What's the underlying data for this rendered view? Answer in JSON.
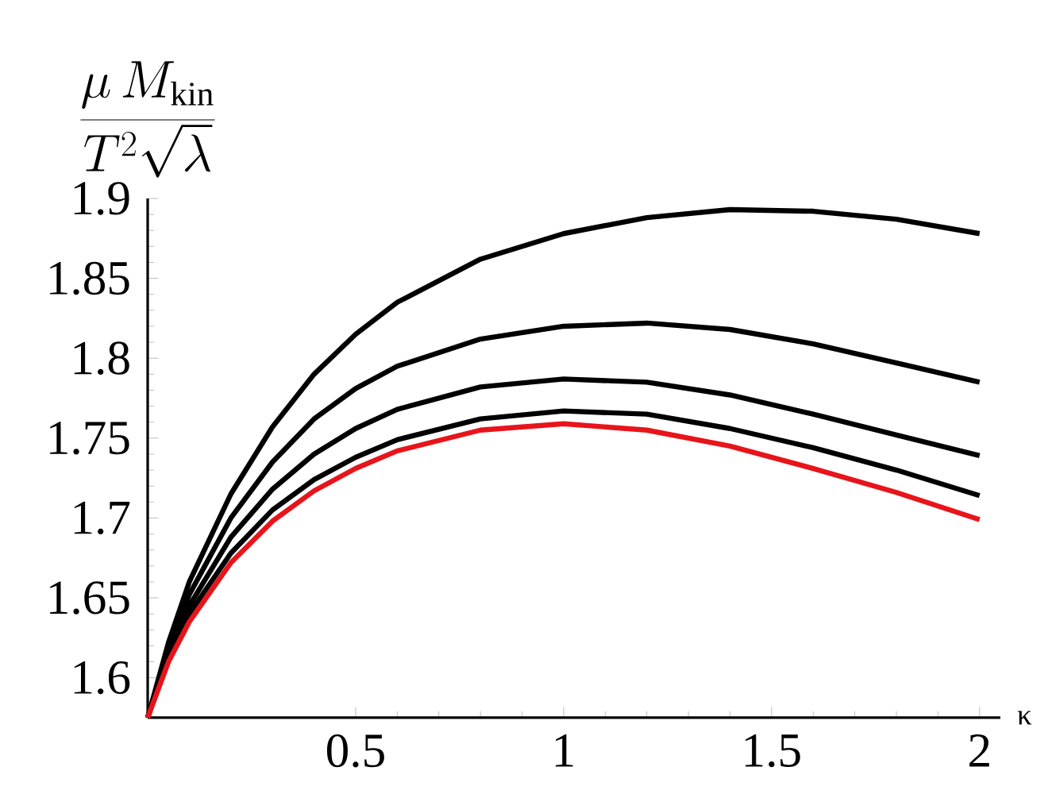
{
  "chart_data": {
    "type": "line",
    "xlabel": "κ",
    "ylabel": "\\frac{\\mu\\, M_{\\mathrm{kin}}}{T^2 \\sqrt{\\lambda}}",
    "x": [
      0,
      0.05,
      0.1,
      0.2,
      0.3,
      0.4,
      0.5,
      0.6,
      0.8,
      1.0,
      1.2,
      1.4,
      1.6,
      1.8,
      2.0
    ],
    "series": [
      {
        "color": "#000000",
        "values": [
          1.575,
          1.622,
          1.66,
          1.715,
          1.757,
          1.79,
          1.815,
          1.835,
          1.862,
          1.878,
          1.888,
          1.893,
          1.892,
          1.887,
          1.878
        ]
      },
      {
        "color": "#000000",
        "values": [
          1.575,
          1.618,
          1.652,
          1.7,
          1.735,
          1.762,
          1.781,
          1.795,
          1.812,
          1.82,
          1.822,
          1.818,
          1.809,
          1.797,
          1.785
        ]
      },
      {
        "color": "#000000",
        "values": [
          1.575,
          1.615,
          1.645,
          1.688,
          1.718,
          1.74,
          1.756,
          1.768,
          1.782,
          1.787,
          1.785,
          1.777,
          1.765,
          1.752,
          1.739
        ]
      },
      {
        "color": "#000000",
        "values": [
          1.575,
          1.612,
          1.64,
          1.678,
          1.705,
          1.724,
          1.738,
          1.749,
          1.762,
          1.767,
          1.765,
          1.756,
          1.744,
          1.73,
          1.714
        ]
      },
      {
        "color": "#e8141b",
        "values": [
          1.575,
          1.61,
          1.635,
          1.672,
          1.698,
          1.717,
          1.731,
          1.742,
          1.755,
          1.759,
          1.755,
          1.745,
          1.731,
          1.716,
          1.699
        ]
      }
    ],
    "xlim": [
      0,
      2.05
    ],
    "ylim": [
      1.575,
      1.9
    ],
    "xticks": [
      0.5,
      1,
      1.5,
      2
    ],
    "yticks": [
      1.6,
      1.65,
      1.7,
      1.75,
      1.8,
      1.85,
      1.9
    ]
  }
}
